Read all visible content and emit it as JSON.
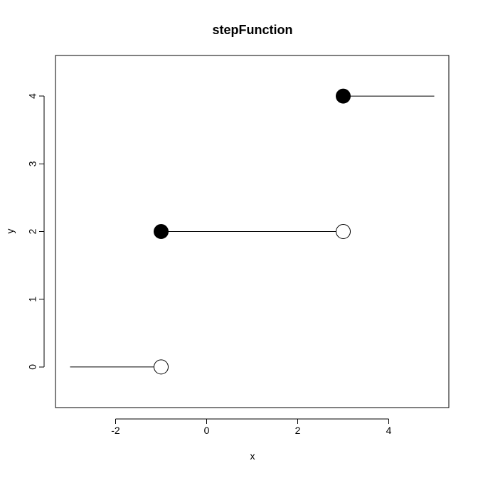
{
  "chart_data": {
    "type": "scatter",
    "title": "stepFunction",
    "xlabel": "x",
    "ylabel": "y",
    "xlim": [
      -3.32,
      5.32
    ],
    "ylim": [
      -0.6,
      4.6
    ],
    "x_ticks": [
      "-2",
      "0",
      "2",
      "4"
    ],
    "x_tick_values": [
      -2,
      0,
      2,
      4
    ],
    "y_ticks": [
      "0",
      "1",
      "2",
      "3",
      "4"
    ],
    "y_tick_values": [
      0,
      1,
      2,
      3,
      4
    ],
    "grid": false,
    "segments": [
      {
        "x1": -3,
        "y1": 0,
        "x2": -1,
        "y2": 0
      },
      {
        "x1": -1,
        "y1": 2,
        "x2": 3,
        "y2": 2
      },
      {
        "x1": 3,
        "y1": 4,
        "x2": 5,
        "y2": 4
      }
    ],
    "points": [
      {
        "x": -1,
        "y": 0,
        "filled": false
      },
      {
        "x": -1,
        "y": 2,
        "filled": true
      },
      {
        "x": 3,
        "y": 2,
        "filled": false
      },
      {
        "x": 3,
        "y": 4,
        "filled": true
      }
    ],
    "colors": {
      "line": "#000000",
      "point": "#000000",
      "background": "#ffffff"
    }
  }
}
